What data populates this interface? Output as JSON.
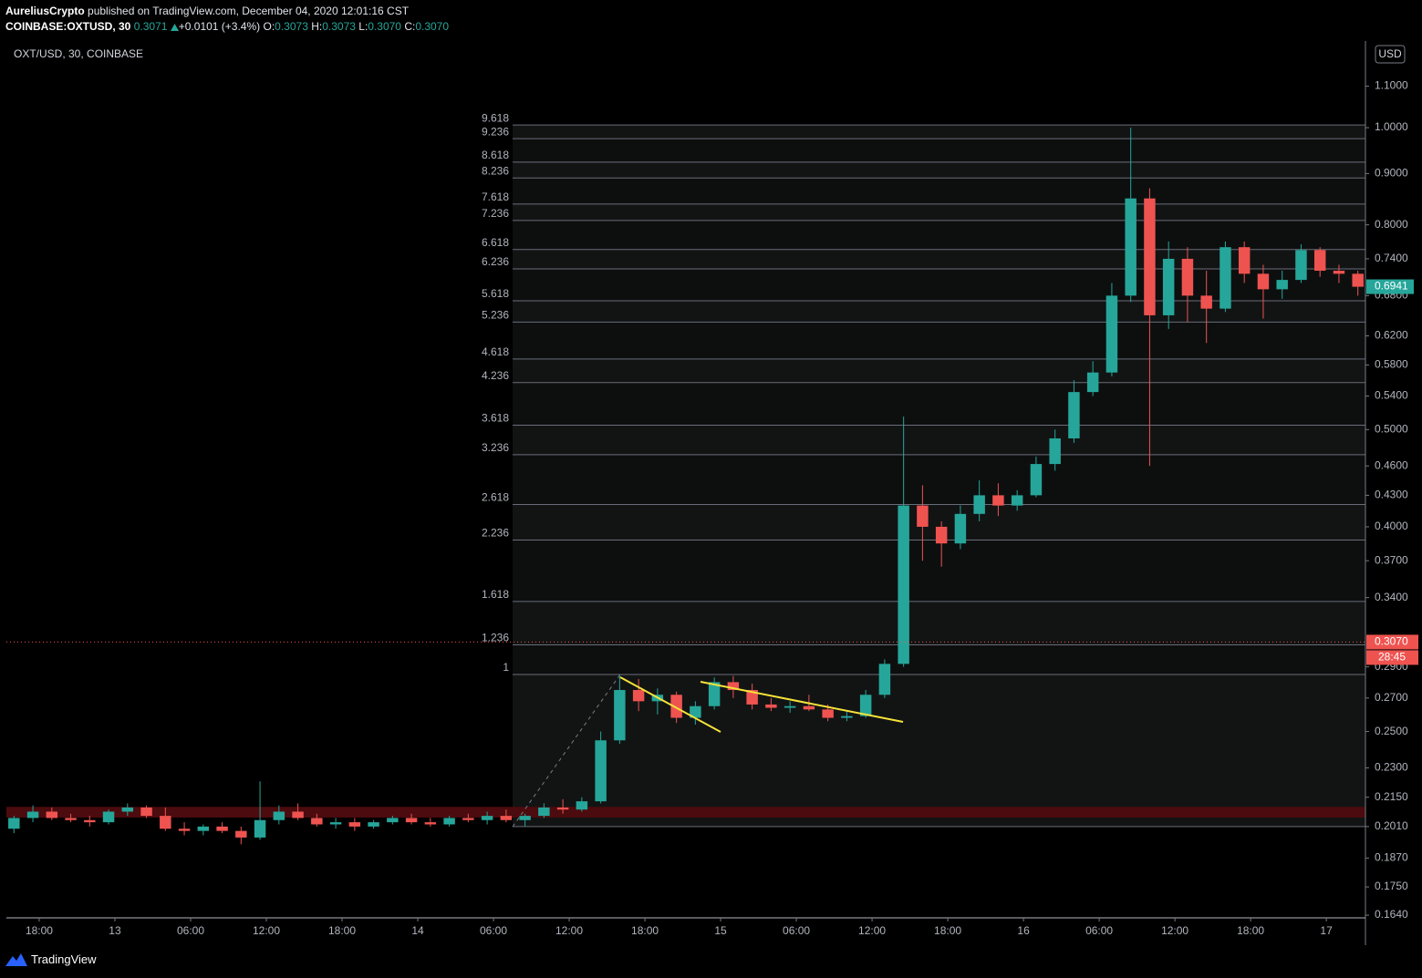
{
  "header": {
    "author": "AureliusCrypto",
    "published": "published on TradingView.com, December 04, 2020 12:01:16 CST",
    "symbol": "COINBASE:OXTUSD, 30",
    "price": "0.3071",
    "change": "+0.0101 (+3.4%)",
    "ohlc": [
      [
        "O:",
        "0.3073"
      ],
      [
        "H:",
        "0.3073"
      ],
      [
        "L:",
        "0.3070"
      ],
      [
        "C:",
        "0.3070"
      ]
    ]
  },
  "footer": {
    "brand": "TradingView"
  },
  "chart_data": {
    "type": "candlestick",
    "title": "OXT/USD, 30, COINBASE",
    "currency": "USD",
    "log_scale": true,
    "up_color": "#26a69a",
    "down_color": "#ef5350",
    "xlim": [
      15.4,
      123.1
    ],
    "ylim": [
      0.163,
      1.22
    ],
    "xticks": [
      {
        "value": 18,
        "label": "18:00"
      },
      {
        "value": 24,
        "label": "13"
      },
      {
        "value": 30,
        "label": "06:00"
      },
      {
        "value": 36,
        "label": "12:00"
      },
      {
        "value": 42,
        "label": "18:00"
      },
      {
        "value": 48,
        "label": "14"
      },
      {
        "value": 54,
        "label": "06:00"
      },
      {
        "value": 60,
        "label": "12:00"
      },
      {
        "value": 66,
        "label": "18:00"
      },
      {
        "value": 72,
        "label": "15"
      },
      {
        "value": 78,
        "label": "06:00"
      },
      {
        "value": 84,
        "label": "12:00"
      },
      {
        "value": 90,
        "label": "18:00"
      },
      {
        "value": 96,
        "label": "16"
      },
      {
        "value": 102,
        "label": "06:00"
      },
      {
        "value": 108,
        "label": "12:00"
      },
      {
        "value": 114,
        "label": "18:00"
      },
      {
        "value": 120,
        "label": "17"
      }
    ],
    "yticks": [
      {
        "value": 1.1,
        "label": "1.1000"
      },
      {
        "value": 1.0,
        "label": "1.0000"
      },
      {
        "value": 0.9,
        "label": "0.9000"
      },
      {
        "value": 0.8,
        "label": "0.8000"
      },
      {
        "value": 0.74,
        "label": "0.7400"
      },
      {
        "value": 0.68,
        "label": "0.6800"
      },
      {
        "value": 0.62,
        "label": "0.6200"
      },
      {
        "value": 0.58,
        "label": "0.5800"
      },
      {
        "value": 0.54,
        "label": "0.5400"
      },
      {
        "value": 0.5,
        "label": "0.5000"
      },
      {
        "value": 0.46,
        "label": "0.4600"
      },
      {
        "value": 0.43,
        "label": "0.4300"
      },
      {
        "value": 0.4,
        "label": "0.4000"
      },
      {
        "value": 0.37,
        "label": "0.3700"
      },
      {
        "value": 0.34,
        "label": "0.3400"
      },
      {
        "value": 0.29,
        "label": "0.2900"
      },
      {
        "value": 0.27,
        "label": "0.2700"
      },
      {
        "value": 0.25,
        "label": "0.2500"
      },
      {
        "value": 0.23,
        "label": "0.2300"
      },
      {
        "value": 0.215,
        "label": "0.2150"
      },
      {
        "value": 0.201,
        "label": "0.2010"
      },
      {
        "value": 0.187,
        "label": "0.1870"
      },
      {
        "value": 0.175,
        "label": "0.1750"
      },
      {
        "value": 0.164,
        "label": "0.1640"
      }
    ],
    "fib_levels": [
      {
        "level": 9.618,
        "price": 1.006
      },
      {
        "level": 9.236,
        "price": 0.975
      },
      {
        "level": 8.618,
        "price": 0.924
      },
      {
        "level": 8.236,
        "price": 0.891
      },
      {
        "level": 7.618,
        "price": 0.839
      },
      {
        "level": 7.236,
        "price": 0.808
      },
      {
        "level": 6.618,
        "price": 0.756
      },
      {
        "level": 6.236,
        "price": 0.723
      },
      {
        "level": 5.618,
        "price": 0.672
      },
      {
        "level": 5.236,
        "price": 0.64
      },
      {
        "level": 4.618,
        "price": 0.588
      },
      {
        "level": 4.236,
        "price": 0.557
      },
      {
        "level": 3.618,
        "price": 0.505
      },
      {
        "level": 3.236,
        "price": 0.472
      },
      {
        "level": 2.618,
        "price": 0.421
      },
      {
        "level": 2.236,
        "price": 0.388
      },
      {
        "level": 1.618,
        "price": 0.337
      },
      {
        "level": 1.236,
        "price": 0.305
      },
      {
        "level": 1,
        "price": 0.285
      }
    ],
    "fib_base": 0.201,
    "zone": [
      0.2052,
      0.2103
    ],
    "last_price": {
      "value": 0.307,
      "label": "0.3070"
    },
    "countdown": "28:45",
    "marker_price": 0.6941,
    "candles": {
      "x": [
        16,
        17.5,
        19,
        20.5,
        22,
        23.5,
        25,
        26.5,
        28,
        29.5,
        31,
        32.5,
        34,
        35.5,
        37,
        38.5,
        40,
        41.5,
        43,
        44.5,
        46,
        47.5,
        49,
        50.5,
        52,
        53.5,
        55,
        56.5,
        58,
        59.5,
        61,
        62.5,
        64,
        65.5,
        67,
        68.5,
        70,
        71.5,
        73,
        74.5,
        76,
        77.5,
        79,
        80.5,
        82,
        83.5,
        85,
        86.5,
        88,
        89.5,
        91,
        92.5,
        94,
        95.5,
        97,
        98.5,
        100,
        101.5,
        103,
        104.5,
        106,
        107.5,
        109,
        110.5,
        112,
        113.5,
        115,
        116.5,
        118,
        119.5,
        121,
        122.5
      ],
      "open": [
        0.2,
        0.205,
        0.208,
        0.205,
        0.204,
        0.203,
        0.208,
        0.21,
        0.206,
        0.2,
        0.199,
        0.201,
        0.199,
        0.196,
        0.204,
        0.208,
        0.205,
        0.202,
        0.203,
        0.201,
        0.203,
        0.205,
        0.203,
        0.202,
        0.205,
        0.204,
        0.206,
        0.204,
        0.206,
        0.21,
        0.209,
        0.213,
        0.245,
        0.275,
        0.268,
        0.272,
        0.258,
        0.265,
        0.28,
        0.275,
        0.266,
        0.264,
        0.265,
        0.263,
        0.258,
        0.259,
        0.272,
        0.292,
        0.42,
        0.4,
        0.385,
        0.412,
        0.43,
        0.42,
        0.43,
        0.462,
        0.49,
        0.545,
        0.57,
        0.68,
        0.85,
        0.65,
        0.74,
        0.68,
        0.66,
        0.76,
        0.715,
        0.69,
        0.705,
        0.755,
        0.72,
        0.715
      ],
      "high": [
        0.206,
        0.211,
        0.21,
        0.207,
        0.206,
        0.209,
        0.212,
        0.211,
        0.21,
        0.203,
        0.202,
        0.203,
        0.201,
        0.223,
        0.211,
        0.212,
        0.207,
        0.205,
        0.205,
        0.204,
        0.206,
        0.207,
        0.205,
        0.206,
        0.207,
        0.208,
        0.209,
        0.207,
        0.212,
        0.214,
        0.215,
        0.25,
        0.285,
        0.282,
        0.276,
        0.274,
        0.268,
        0.283,
        0.284,
        0.279,
        0.27,
        0.268,
        0.272,
        0.266,
        0.262,
        0.275,
        0.295,
        0.515,
        0.44,
        0.405,
        0.42,
        0.445,
        0.442,
        0.435,
        0.47,
        0.5,
        0.56,
        0.585,
        0.7,
        1.0,
        0.87,
        0.77,
        0.76,
        0.72,
        0.77,
        0.77,
        0.73,
        0.72,
        0.765,
        0.76,
        0.73,
        0.72
      ],
      "low": [
        0.198,
        0.203,
        0.204,
        0.203,
        0.201,
        0.202,
        0.206,
        0.205,
        0.199,
        0.197,
        0.197,
        0.198,
        0.193,
        0.195,
        0.202,
        0.204,
        0.201,
        0.2,
        0.199,
        0.2,
        0.202,
        0.202,
        0.201,
        0.201,
        0.203,
        0.202,
        0.203,
        0.201,
        0.205,
        0.207,
        0.208,
        0.212,
        0.243,
        0.262,
        0.26,
        0.255,
        0.254,
        0.263,
        0.27,
        0.263,
        0.262,
        0.261,
        0.262,
        0.256,
        0.256,
        0.258,
        0.27,
        0.29,
        0.37,
        0.365,
        0.38,
        0.405,
        0.41,
        0.415,
        0.428,
        0.455,
        0.485,
        0.54,
        0.565,
        0.67,
        0.46,
        0.63,
        0.64,
        0.61,
        0.655,
        0.7,
        0.645,
        0.675,
        0.7,
        0.71,
        0.7,
        0.68
      ],
      "close": [
        0.205,
        0.208,
        0.205,
        0.204,
        0.203,
        0.208,
        0.21,
        0.206,
        0.2,
        0.199,
        0.201,
        0.199,
        0.196,
        0.204,
        0.208,
        0.205,
        0.202,
        0.203,
        0.201,
        0.203,
        0.205,
        0.203,
        0.202,
        0.205,
        0.204,
        0.206,
        0.204,
        0.206,
        0.21,
        0.209,
        0.213,
        0.245,
        0.275,
        0.268,
        0.272,
        0.258,
        0.265,
        0.28,
        0.275,
        0.266,
        0.264,
        0.265,
        0.263,
        0.258,
        0.259,
        0.272,
        0.292,
        0.42,
        0.4,
        0.385,
        0.412,
        0.43,
        0.42,
        0.43,
        0.462,
        0.49,
        0.545,
        0.57,
        0.68,
        0.85,
        0.65,
        0.74,
        0.68,
        0.66,
        0.76,
        0.715,
        0.69,
        0.705,
        0.755,
        0.72,
        0.715,
        0.694
      ]
    }
  }
}
